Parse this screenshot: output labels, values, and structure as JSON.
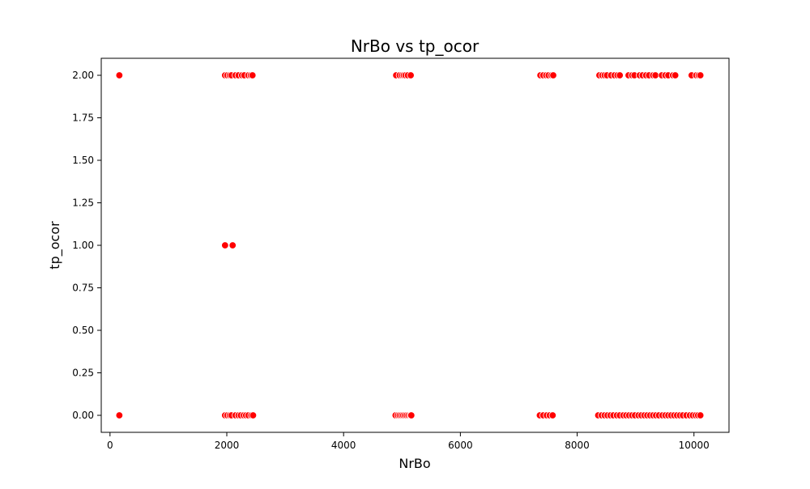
{
  "chart_data": {
    "type": "scatter",
    "title": "NrBo vs tp_ocor",
    "xlabel": "NrBo",
    "ylabel": "tp_ocor",
    "xlim": [
      -150,
      10600
    ],
    "ylim": [
      -0.1,
      2.1
    ],
    "xticks": [
      {
        "value": 0,
        "label": "0"
      },
      {
        "value": 2000,
        "label": "2000"
      },
      {
        "value": 4000,
        "label": "4000"
      },
      {
        "value": 6000,
        "label": "6000"
      },
      {
        "value": 8000,
        "label": "8000"
      },
      {
        "value": 10000,
        "label": "10000"
      }
    ],
    "yticks": [
      {
        "value": 0,
        "label": "0.00"
      },
      {
        "value": 0.25,
        "label": "0.25"
      },
      {
        "value": 0.5,
        "label": "0.50"
      },
      {
        "value": 0.75,
        "label": "0.75"
      },
      {
        "value": 1.0,
        "label": "1.00"
      },
      {
        "value": 1.25,
        "label": "1.25"
      },
      {
        "value": 1.5,
        "label": "1.50"
      },
      {
        "value": 1.75,
        "label": "1.75"
      },
      {
        "value": 2.0,
        "label": "2.00"
      }
    ],
    "grid": false,
    "marker_color": "#ff0000",
    "marker_edge_color": "#ffffff",
    "series": [
      {
        "points": [
          {
            "x": 160,
            "y": 2
          },
          {
            "x": 1970,
            "y": 2
          },
          {
            "x": 2010,
            "y": 2
          },
          {
            "x": 2050,
            "y": 2
          },
          {
            "x": 2080,
            "y": 2
          },
          {
            "x": 2150,
            "y": 2
          },
          {
            "x": 2200,
            "y": 2
          },
          {
            "x": 2260,
            "y": 2
          },
          {
            "x": 2300,
            "y": 2
          },
          {
            "x": 2370,
            "y": 2
          },
          {
            "x": 2410,
            "y": 2
          },
          {
            "x": 2440,
            "y": 2
          },
          {
            "x": 4900,
            "y": 2
          },
          {
            "x": 4960,
            "y": 2
          },
          {
            "x": 5000,
            "y": 2
          },
          {
            "x": 5030,
            "y": 2
          },
          {
            "x": 5060,
            "y": 2
          },
          {
            "x": 5100,
            "y": 2
          },
          {
            "x": 5150,
            "y": 2
          },
          {
            "x": 7370,
            "y": 2
          },
          {
            "x": 7420,
            "y": 2
          },
          {
            "x": 7470,
            "y": 2
          },
          {
            "x": 7510,
            "y": 2
          },
          {
            "x": 7560,
            "y": 2
          },
          {
            "x": 7590,
            "y": 2
          },
          {
            "x": 8380,
            "y": 2
          },
          {
            "x": 8430,
            "y": 2
          },
          {
            "x": 8470,
            "y": 2
          },
          {
            "x": 8510,
            "y": 2
          },
          {
            "x": 8580,
            "y": 2
          },
          {
            "x": 8640,
            "y": 2
          },
          {
            "x": 8690,
            "y": 2
          },
          {
            "x": 8730,
            "y": 2
          },
          {
            "x": 8880,
            "y": 2
          },
          {
            "x": 8940,
            "y": 2
          },
          {
            "x": 8980,
            "y": 2
          },
          {
            "x": 9070,
            "y": 2
          },
          {
            "x": 9120,
            "y": 2
          },
          {
            "x": 9180,
            "y": 2
          },
          {
            "x": 9230,
            "y": 2
          },
          {
            "x": 9300,
            "y": 2
          },
          {
            "x": 9340,
            "y": 2
          },
          {
            "x": 9450,
            "y": 2
          },
          {
            "x": 9510,
            "y": 2
          },
          {
            "x": 9560,
            "y": 2
          },
          {
            "x": 9640,
            "y": 2
          },
          {
            "x": 9680,
            "y": 2
          },
          {
            "x": 9960,
            "y": 2
          },
          {
            "x": 10040,
            "y": 2
          },
          {
            "x": 10080,
            "y": 2
          },
          {
            "x": 10110,
            "y": 2
          },
          {
            "x": 1970,
            "y": 1
          },
          {
            "x": 2100,
            "y": 1
          },
          {
            "x": 160,
            "y": 0
          },
          {
            "x": 1970,
            "y": 0
          },
          {
            "x": 2010,
            "y": 0
          },
          {
            "x": 2050,
            "y": 0
          },
          {
            "x": 2080,
            "y": 0
          },
          {
            "x": 2150,
            "y": 0
          },
          {
            "x": 2200,
            "y": 0
          },
          {
            "x": 2240,
            "y": 0
          },
          {
            "x": 2290,
            "y": 0
          },
          {
            "x": 2330,
            "y": 0
          },
          {
            "x": 2370,
            "y": 0
          },
          {
            "x": 2420,
            "y": 0
          },
          {
            "x": 2450,
            "y": 0
          },
          {
            "x": 4890,
            "y": 0
          },
          {
            "x": 4930,
            "y": 0
          },
          {
            "x": 4960,
            "y": 0
          },
          {
            "x": 4990,
            "y": 0
          },
          {
            "x": 5020,
            "y": 0
          },
          {
            "x": 5050,
            "y": 0
          },
          {
            "x": 5080,
            "y": 0
          },
          {
            "x": 5110,
            "y": 0
          },
          {
            "x": 5140,
            "y": 0
          },
          {
            "x": 5160,
            "y": 0
          },
          {
            "x": 7360,
            "y": 0
          },
          {
            "x": 7420,
            "y": 0
          },
          {
            "x": 7480,
            "y": 0
          },
          {
            "x": 7530,
            "y": 0
          },
          {
            "x": 7580,
            "y": 0
          },
          {
            "x": 8360,
            "y": 0
          },
          {
            "x": 8420,
            "y": 0
          },
          {
            "x": 8470,
            "y": 0
          },
          {
            "x": 8520,
            "y": 0
          },
          {
            "x": 8570,
            "y": 0
          },
          {
            "x": 8620,
            "y": 0
          },
          {
            "x": 8680,
            "y": 0
          },
          {
            "x": 8730,
            "y": 0
          },
          {
            "x": 8790,
            "y": 0
          },
          {
            "x": 8840,
            "y": 0
          },
          {
            "x": 8890,
            "y": 0
          },
          {
            "x": 8940,
            "y": 0
          },
          {
            "x": 8990,
            "y": 0
          },
          {
            "x": 9050,
            "y": 0
          },
          {
            "x": 9100,
            "y": 0
          },
          {
            "x": 9150,
            "y": 0
          },
          {
            "x": 9200,
            "y": 0
          },
          {
            "x": 9250,
            "y": 0
          },
          {
            "x": 9300,
            "y": 0
          },
          {
            "x": 9350,
            "y": 0
          },
          {
            "x": 9400,
            "y": 0
          },
          {
            "x": 9460,
            "y": 0
          },
          {
            "x": 9510,
            "y": 0
          },
          {
            "x": 9560,
            "y": 0
          },
          {
            "x": 9610,
            "y": 0
          },
          {
            "x": 9660,
            "y": 0
          },
          {
            "x": 9710,
            "y": 0
          },
          {
            "x": 9760,
            "y": 0
          },
          {
            "x": 9810,
            "y": 0
          },
          {
            "x": 9870,
            "y": 0
          },
          {
            "x": 9930,
            "y": 0
          },
          {
            "x": 9980,
            "y": 0
          },
          {
            "x": 10030,
            "y": 0
          },
          {
            "x": 10070,
            "y": 0
          },
          {
            "x": 10110,
            "y": 0
          }
        ]
      }
    ]
  }
}
